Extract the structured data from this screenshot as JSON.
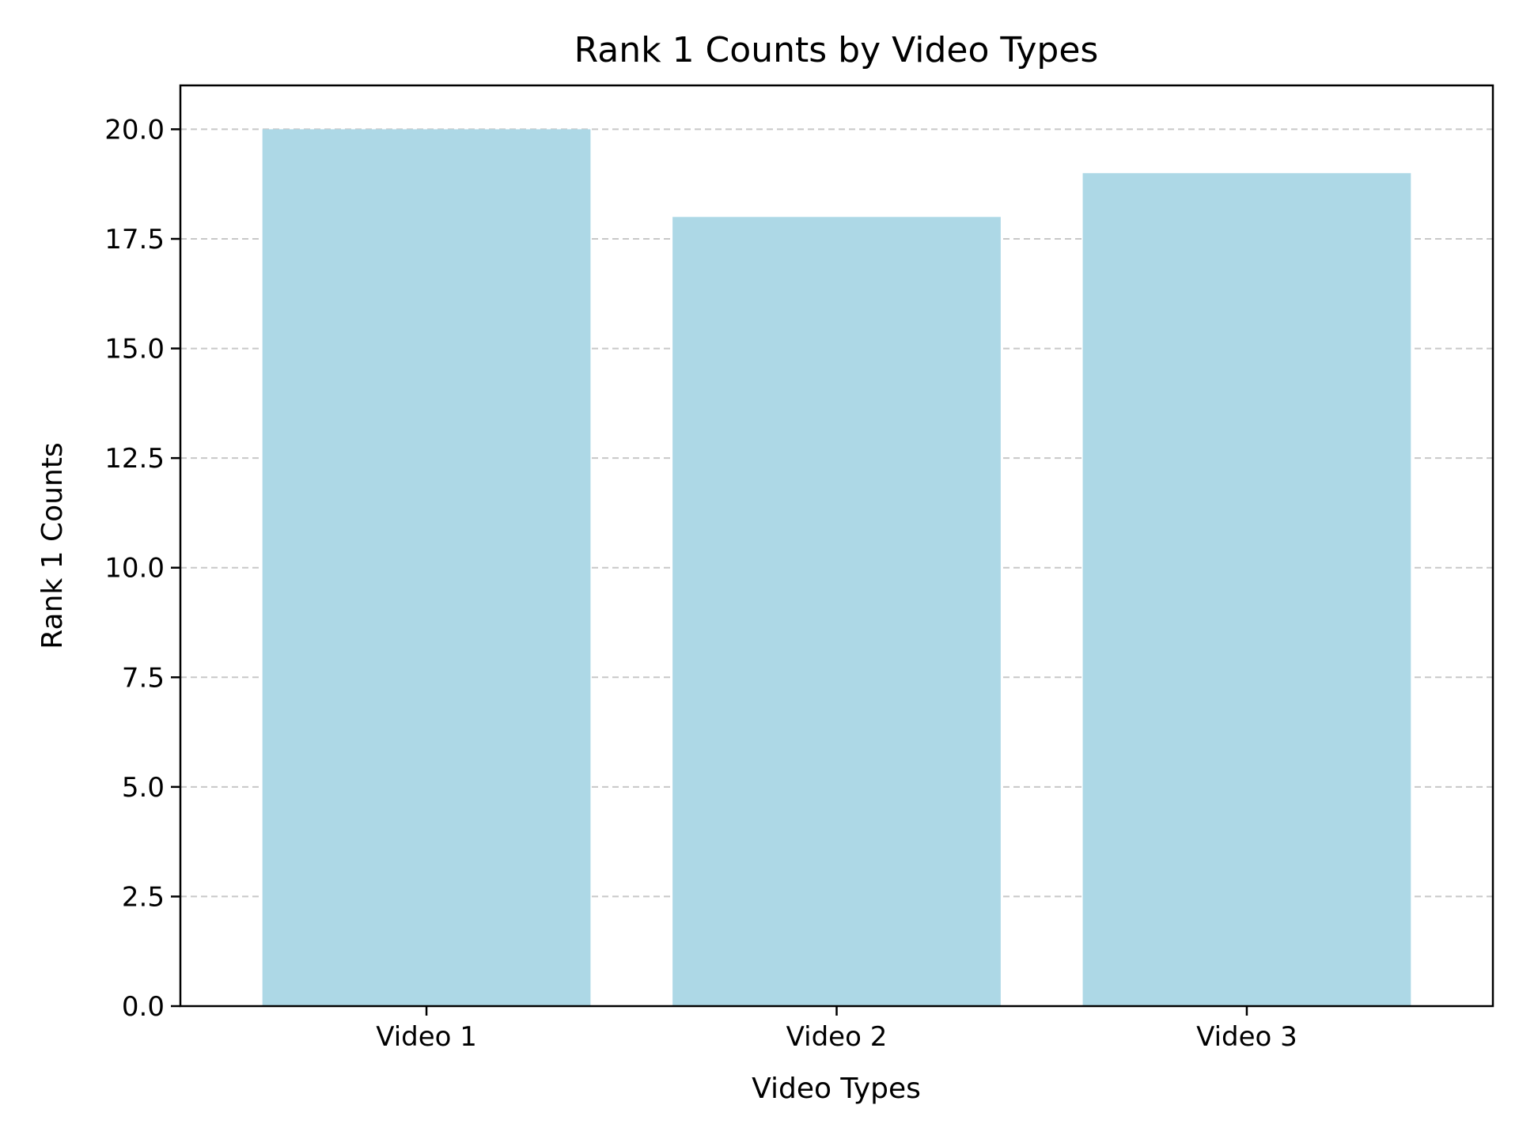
{
  "chart_data": {
    "type": "bar",
    "title": "Rank 1 Counts by Video Types",
    "xlabel": "Video Types",
    "ylabel": "Rank 1 Counts",
    "categories": [
      "Video 1",
      "Video 2",
      "Video 3"
    ],
    "values": [
      20,
      18,
      19
    ],
    "ylim": [
      0,
      21
    ],
    "yticks": [
      "0.0",
      "2.5",
      "5.0",
      "7.5",
      "10.0",
      "12.5",
      "15.0",
      "17.5",
      "20.0"
    ],
    "grid": "horizontal-dashed",
    "bar_color": "#add8e6",
    "grid_color": "#c8c8c8"
  }
}
